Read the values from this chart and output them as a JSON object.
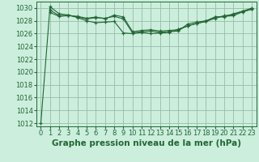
{
  "background_color": "#cceedd",
  "grid_color": "#99bbaa",
  "line_color": "#226633",
  "xlabel": "Graphe pression niveau de la mer (hPa)",
  "xlabel_fontsize": 7.5,
  "tick_fontsize": 6,
  "xlim": [
    -0.5,
    23.5
  ],
  "ylim": [
    1011.5,
    1031.0
  ],
  "yticks": [
    1012,
    1014,
    1016,
    1018,
    1020,
    1022,
    1024,
    1026,
    1028,
    1030
  ],
  "xticks": [
    0,
    1,
    2,
    3,
    4,
    5,
    6,
    7,
    8,
    9,
    10,
    11,
    12,
    13,
    14,
    15,
    16,
    17,
    18,
    19,
    20,
    21,
    22,
    23
  ],
  "series": [
    {
      "x": [
        0,
        1,
        2,
        3,
        4,
        5,
        6,
        7,
        8,
        9,
        10,
        11,
        12,
        13,
        14,
        15,
        16,
        17,
        18,
        19,
        20,
        21,
        22,
        23
      ],
      "y": [
        1012.0,
        1030.2,
        1029.1,
        1028.9,
        1028.5,
        1028.0,
        1027.7,
        1027.8,
        1027.9,
        1026.1,
        1026.0,
        1026.2,
        1026.0,
        1026.1,
        1026.2,
        1026.7,
        1027.2,
        1027.6,
        1027.9,
        1028.6,
        1028.6,
        1029.1,
        1029.5,
        1029.8
      ]
    },
    {
      "x": [
        1,
        2,
        3,
        4,
        5,
        6,
        7,
        8,
        9,
        10,
        11,
        12,
        13,
        14,
        15,
        16,
        17,
        18,
        19,
        20,
        21,
        22,
        23
      ],
      "y": [
        1029.7,
        1028.8,
        1028.9,
        1028.6,
        1028.3,
        1028.5,
        1028.4,
        1028.7,
        1028.3,
        1026.1,
        1026.3,
        1026.4,
        1026.2,
        1026.3,
        1026.4,
        1027.5,
        1027.8,
        1028.0,
        1028.6,
        1028.7,
        1028.8,
        1029.4,
        1029.8
      ]
    },
    {
      "x": [
        1,
        2,
        3,
        4,
        5,
        6,
        7,
        8,
        9,
        10,
        11,
        12,
        13,
        14,
        15,
        16,
        17,
        18,
        19,
        20,
        21,
        22,
        23
      ],
      "y": [
        1029.3,
        1028.7,
        1028.8,
        1028.7,
        1028.4,
        1028.6,
        1028.3,
        1028.9,
        1028.6,
        1026.3,
        1026.5,
        1026.6,
        1026.4,
        1026.5,
        1026.6,
        1027.2,
        1027.6,
        1027.9,
        1028.4,
        1028.8,
        1029.0,
        1029.5,
        1030.0
      ]
    }
  ]
}
